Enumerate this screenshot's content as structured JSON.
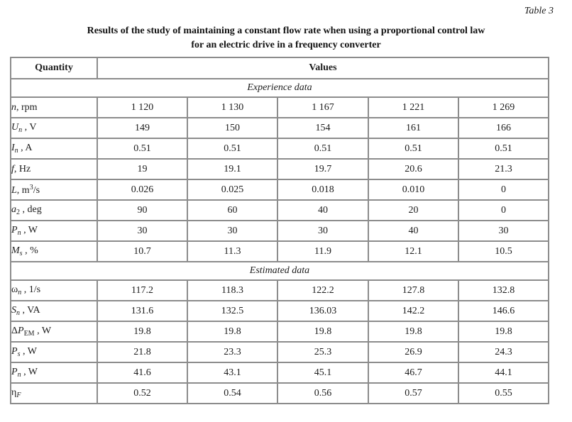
{
  "caption": "Table 3",
  "title": {
    "line1": "Results of the study of maintaining a constant flow rate when using a proportional control law",
    "line2": "for an electric drive in a frequency converter"
  },
  "colors": {
    "table_border": "#8c8c8c",
    "text": "#1c1c1c",
    "background": "#ffffff"
  },
  "table": {
    "quantity_header": "Quantity",
    "values_header": "Values",
    "sections": [
      {
        "name": "Experience data",
        "rows": [
          {
            "label": [
              {
                "t": "n",
                "s": "i"
              },
              {
                "t": ", rpm"
              }
            ],
            "values": [
              "1 120",
              "1 130",
              "1 167",
              "1 221",
              "1 269"
            ]
          },
          {
            "label": [
              {
                "t": "U",
                "s": "i"
              },
              {
                "t": "n",
                "s": "isub"
              },
              {
                "t": " , V"
              }
            ],
            "values": [
              "149",
              "150",
              "154",
              "161",
              "166"
            ]
          },
          {
            "label": [
              {
                "t": "I",
                "s": "i"
              },
              {
                "t": "n",
                "s": "isub"
              },
              {
                "t": " , A"
              }
            ],
            "values": [
              "0.51",
              "0.51",
              "0.51",
              "0.51",
              "0.51"
            ]
          },
          {
            "label": [
              {
                "t": "f",
                "s": "i"
              },
              {
                "t": ", Hz"
              }
            ],
            "values": [
              "19",
              "19.1",
              "19.7",
              "20.6",
              "21.3"
            ]
          },
          {
            "label": [
              {
                "t": "L",
                "s": "i"
              },
              {
                "t": ", m"
              },
              {
                "t": "3",
                "s": "sup"
              },
              {
                "t": "/s"
              }
            ],
            "values": [
              "0.026",
              "0.025",
              "0.018",
              "0.010",
              "0"
            ]
          },
          {
            "label": [
              {
                "t": "a",
                "s": "i"
              },
              {
                "t": "2",
                "s": "sub"
              },
              {
                "t": " , deg"
              }
            ],
            "values": [
              "90",
              "60",
              "40",
              "20",
              "0"
            ]
          },
          {
            "label": [
              {
                "t": "P",
                "s": "i"
              },
              {
                "t": "n",
                "s": "isub"
              },
              {
                "t": " , W"
              }
            ],
            "values": [
              "30",
              "30",
              "30",
              "40",
              "30"
            ]
          },
          {
            "label": [
              {
                "t": "M",
                "s": "i"
              },
              {
                "t": "s",
                "s": "isub"
              },
              {
                "t": " , %"
              }
            ],
            "values": [
              "10.7",
              "11.3",
              "11.9",
              "12.1",
              "10.5"
            ]
          }
        ]
      },
      {
        "name": "Estimated data",
        "rows": [
          {
            "label": [
              {
                "t": "ω"
              },
              {
                "t": "n",
                "s": "isub"
              },
              {
                "t": " , 1/s"
              }
            ],
            "values": [
              "117.2",
              "118.3",
              "122.2",
              "127.8",
              "132.8"
            ]
          },
          {
            "label": [
              {
                "t": "S",
                "s": "i"
              },
              {
                "t": "n",
                "s": "isub"
              },
              {
                "t": " , VA"
              }
            ],
            "values": [
              "131.6",
              "132.5",
              "136.03",
              "142.2",
              "146.6"
            ]
          },
          {
            "label": [
              {
                "t": "Δ"
              },
              {
                "t": "P",
                "s": "i"
              },
              {
                "t": "EM",
                "s": "sub"
              },
              {
                "t": " , W"
              }
            ],
            "values": [
              "19.8",
              "19.8",
              "19.8",
              "19.8",
              "19.8"
            ]
          },
          {
            "label": [
              {
                "t": "P",
                "s": "i"
              },
              {
                "t": "s",
                "s": "isub"
              },
              {
                "t": " , W"
              }
            ],
            "values": [
              "21.8",
              "23.3",
              "25.3",
              "26.9",
              "24.3"
            ]
          },
          {
            "label": [
              {
                "t": "P",
                "s": "i"
              },
              {
                "t": "n",
                "s": "isub"
              },
              {
                "t": " , W"
              }
            ],
            "values": [
              "41.6",
              "43.1",
              "45.1",
              "46.7",
              "44.1"
            ]
          },
          {
            "label": [
              {
                "t": "η"
              },
              {
                "t": "F",
                "s": "isub"
              }
            ],
            "values": [
              "0.52",
              "0.54",
              "0.56",
              "0.57",
              "0.55"
            ]
          }
        ]
      }
    ]
  }
}
